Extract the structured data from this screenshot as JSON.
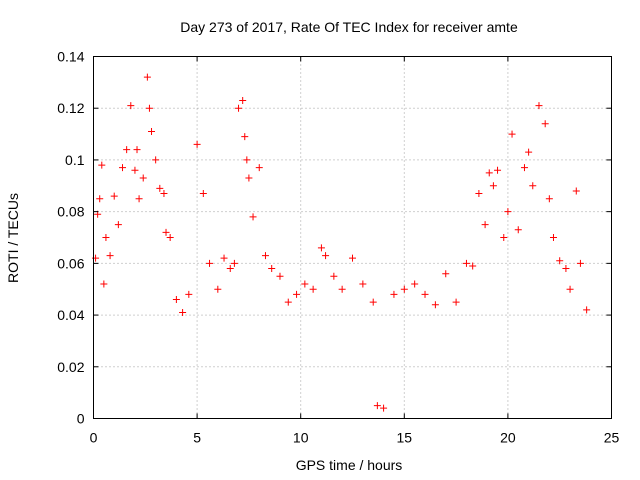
{
  "chart_data": {
    "type": "scatter",
    "title": "Day 273 of 2017, Rate Of TEC Index for receiver amte",
    "xlabel": "GPS time / hours",
    "ylabel": "ROTI / TECUs",
    "xlim": [
      0,
      25
    ],
    "ylim": [
      0,
      0.14
    ],
    "xticks": [
      0,
      5,
      10,
      15,
      20,
      25
    ],
    "xtick_labels": [
      "0",
      "5",
      "10",
      "15",
      "20",
      "25"
    ],
    "yticks": [
      0,
      0.02,
      0.04,
      0.06,
      0.08,
      0.1,
      0.12,
      0.14
    ],
    "ytick_labels": [
      "0",
      "0.02",
      "0.04",
      "0.06",
      "0.08",
      "0.1",
      "0.12",
      "0.14"
    ],
    "grid": true,
    "marker": "+",
    "series": [
      {
        "name": "ROTI",
        "color": "#ff0000",
        "x": [
          0.1,
          0.2,
          0.3,
          0.4,
          0.5,
          0.6,
          0.8,
          1.0,
          1.2,
          1.4,
          1.6,
          1.8,
          2.0,
          2.1,
          2.2,
          2.4,
          2.6,
          2.7,
          2.8,
          3.0,
          3.2,
          3.4,
          3.5,
          3.7,
          4.0,
          4.3,
          4.6,
          5.0,
          5.3,
          5.6,
          6.0,
          6.3,
          6.6,
          6.8,
          7.0,
          7.2,
          7.3,
          7.4,
          7.5,
          7.7,
          8.0,
          8.3,
          8.6,
          9.0,
          9.4,
          9.8,
          10.2,
          10.6,
          11.0,
          11.2,
          11.6,
          12.0,
          12.5,
          13.0,
          13.5,
          13.7,
          14.0,
          14.5,
          15.0,
          15.5,
          16.0,
          16.5,
          17.0,
          17.5,
          18.0,
          18.3,
          18.6,
          18.9,
          19.1,
          19.3,
          19.5,
          19.8,
          20.0,
          20.2,
          20.5,
          20.8,
          21.0,
          21.2,
          21.5,
          21.8,
          22.0,
          22.2,
          22.5,
          22.8,
          23.0,
          23.3,
          23.5,
          23.8
        ],
        "y": [
          0.062,
          0.079,
          0.085,
          0.098,
          0.052,
          0.07,
          0.063,
          0.086,
          0.075,
          0.097,
          0.104,
          0.121,
          0.096,
          0.104,
          0.085,
          0.093,
          0.132,
          0.12,
          0.111,
          0.1,
          0.089,
          0.087,
          0.072,
          0.07,
          0.046,
          0.041,
          0.048,
          0.106,
          0.087,
          0.06,
          0.05,
          0.062,
          0.058,
          0.06,
          0.12,
          0.123,
          0.109,
          0.1,
          0.093,
          0.078,
          0.097,
          0.063,
          0.058,
          0.055,
          0.045,
          0.048,
          0.052,
          0.05,
          0.066,
          0.063,
          0.055,
          0.05,
          0.062,
          0.052,
          0.045,
          0.005,
          0.004,
          0.048,
          0.05,
          0.052,
          0.048,
          0.044,
          0.056,
          0.045,
          0.06,
          0.059,
          0.087,
          0.075,
          0.095,
          0.09,
          0.096,
          0.07,
          0.08,
          0.11,
          0.073,
          0.097,
          0.103,
          0.09,
          0.121,
          0.114,
          0.085,
          0.07,
          0.061,
          0.058,
          0.05,
          0.088,
          0.06,
          0.042
        ]
      }
    ]
  }
}
